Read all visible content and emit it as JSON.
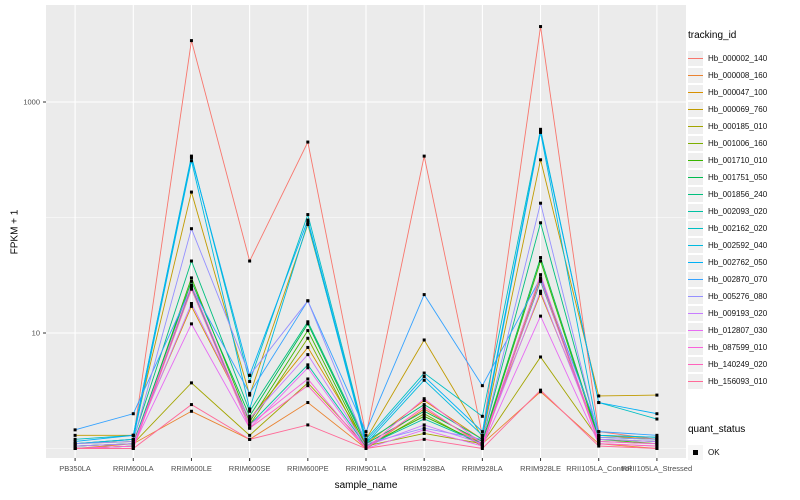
{
  "figure": {
    "y_axis_title": "FPKM + 1",
    "x_axis_title": "sample_name",
    "legend_title": "tracking_id",
    "quant_legend_title": "quant_status",
    "quant_legend_item": "OK"
  },
  "chart_data": {
    "type": "line",
    "title": "",
    "xlabel": "sample_name",
    "ylabel": "FPKM + 1",
    "yscale": "log10",
    "ylim": [
      0.9,
      6000
    ],
    "yticks": [
      10,
      1000
    ],
    "ytick_labels": [
      "10",
      "1000"
    ],
    "minor_gridlines_at": [
      1,
      100
    ],
    "grid": "white major and minor gridlines on gray panel",
    "legend_position": "right",
    "legend_title": "tracking_id",
    "point_legend": {
      "title": "quant_status",
      "items": [
        "OK"
      ],
      "marker": "black-square"
    },
    "style": {
      "panel_bg": "#EBEBEB",
      "grid_color": "#FFFFFF",
      "tick_color": "#333333",
      "tick_label_color": "#4D4D4D",
      "axis_title_color": "#000000",
      "point_color": "#000000",
      "legend_key_bg": "#EFEFEF"
    },
    "categories": [
      "PB350LA",
      "RRIM600LA",
      "RRIM600LE",
      "RRIM600SE",
      "RRIM600PE",
      "RRIM901LA",
      "RRIM928BA",
      "RRIM928LA",
      "RRIM928LE",
      "RRII105LA_Control",
      "RRII105LA_Stressed"
    ],
    "series": [
      {
        "name": "Hb_000002_140",
        "color": "#F8766D",
        "values": [
          1.1,
          1.2,
          3400,
          42,
          450,
          1.3,
          340,
          1.3,
          4500,
          1.4,
          1.2
        ]
      },
      {
        "name": "Hb_000008_160",
        "color": "#EA8331",
        "values": [
          1.0,
          1.1,
          2.1,
          1.2,
          2.5,
          1.0,
          2.2,
          1.1,
          3.1,
          1.1,
          1.0
        ]
      },
      {
        "name": "Hb_000047_100",
        "color": "#D89000",
        "values": [
          1.1,
          1.15,
          17,
          1.8,
          7.5,
          1.1,
          2.6,
          1.2,
          22,
          1.3,
          1.2
        ]
      },
      {
        "name": "Hb_000069_760",
        "color": "#C09B00",
        "values": [
          1.3,
          1.3,
          166,
          2.9,
          87,
          1.2,
          8.7,
          1.25,
          316,
          2.85,
          2.9
        ]
      },
      {
        "name": "Hb_000185_010",
        "color": "#A3A500",
        "values": [
          1.05,
          1.1,
          3.7,
          1.3,
          3.7,
          1.05,
          1.35,
          1.1,
          6.2,
          1.2,
          1.15
        ]
      },
      {
        "name": "Hb_001006_160",
        "color": "#7CAE00",
        "values": [
          1.0,
          1.05,
          24,
          1.6,
          9.0,
          1.0,
          2.0,
          1.05,
          30,
          1.15,
          1.1
        ]
      },
      {
        "name": "Hb_001710_010",
        "color": "#39B600",
        "values": [
          1.0,
          1.05,
          30,
          1.7,
          10.5,
          1.05,
          1.9,
          1.1,
          42,
          1.2,
          1.1
        ]
      },
      {
        "name": "Hb_001751_050",
        "color": "#00BB4E",
        "values": [
          1.05,
          1.1,
          28,
          1.9,
          12,
          1.1,
          2.1,
          1.15,
          45,
          1.25,
          1.2
        ]
      },
      {
        "name": "Hb_001856_240",
        "color": "#00BF7D",
        "values": [
          1.1,
          1.2,
          42,
          2.1,
          12.5,
          1.15,
          2.4,
          1.2,
          90,
          1.3,
          1.25
        ]
      },
      {
        "name": "Hb_002093_020",
        "color": "#00C1A3",
        "values": [
          1.05,
          1.1,
          25,
          1.6,
          5.3,
          1.05,
          1.8,
          1.1,
          28,
          1.2,
          1.15
        ]
      },
      {
        "name": "Hb_002162_020",
        "color": "#00BFC4",
        "values": [
          1.2,
          1.3,
          340,
          3.8,
          106,
          1.2,
          4.5,
          1.9,
          580,
          2.5,
          1.8
        ]
      },
      {
        "name": "Hb_002592_040",
        "color": "#00BAE0",
        "values": [
          1.1,
          1.2,
          310,
          2.2,
          90,
          1.1,
          3.9,
          1.3,
          545,
          1.3,
          1.25
        ]
      },
      {
        "name": "Hb_002762_050",
        "color": "#00B0F6",
        "values": [
          1.15,
          1.3,
          330,
          4.3,
          95,
          1.15,
          4.2,
          1.4,
          560,
          2.5,
          2.0
        ]
      },
      {
        "name": "Hb_002870_070",
        "color": "#35A2FF",
        "values": [
          1.45,
          2.0,
          25,
          3.0,
          19,
          1.4,
          21.5,
          3.5,
          30,
          1.4,
          1.3
        ]
      },
      {
        "name": "Hb_005276_080",
        "color": "#9590FF",
        "values": [
          1.1,
          1.15,
          80,
          4.3,
          19,
          1.1,
          1.5,
          1.2,
          133,
          1.25,
          1.2
        ]
      },
      {
        "name": "Hb_009193_020",
        "color": "#C77CFF",
        "values": [
          1.05,
          1.1,
          18,
          1.8,
          6.5,
          1.05,
          1.6,
          1.1,
          23,
          1.2,
          1.15
        ]
      },
      {
        "name": "Hb_012807_030",
        "color": "#E76BF3",
        "values": [
          1.0,
          1.05,
          12,
          1.5,
          5.0,
          1.0,
          1.45,
          1.05,
          14,
          1.1,
          1.05
        ]
      },
      {
        "name": "Hb_087599_010",
        "color": "#FA62DB",
        "values": [
          1.0,
          1.05,
          26,
          1.6,
          4.0,
          1.0,
          2.7,
          1.1,
          32,
          1.15,
          1.1
        ]
      },
      {
        "name": "Hb_140249_020",
        "color": "#FF62BC",
        "values": [
          1.0,
          1.0,
          24,
          1.5,
          3.5,
          1.0,
          2.3,
          1.05,
          29,
          1.1,
          1.05
        ]
      },
      {
        "name": "Hb_156093_010",
        "color": "#FF6A98",
        "values": [
          1.0,
          1.0,
          2.4,
          1.2,
          1.6,
          1.0,
          1.2,
          1.0,
          3.2,
          1.05,
          1.0
        ]
      }
    ]
  }
}
